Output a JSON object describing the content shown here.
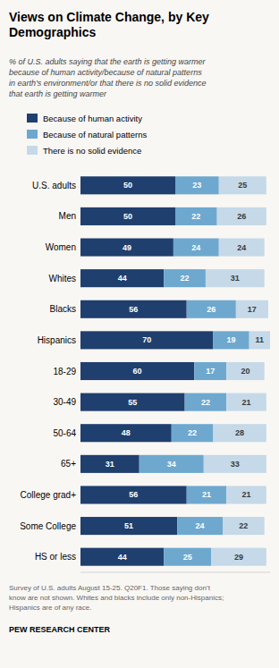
{
  "chart_data": {
    "type": "bar",
    "orientation": "horizontal",
    "stacked": true,
    "title": "Views on Climate Change, by Key\nDemographics",
    "subtitle": "% of U.S. adults saying that the earth is getting warmer\nbecause of human activity/because of natural patterns\nin earth’s environment/or that there is no solid evidence\nthat earth is getting warmer",
    "annotations": [
      "Survey of U.S. adults August 15-25. Q20F1. Those saying don’t\nknow are not shown. Whites and blacks include only non-Hispanics;\nHispanics are of any race.",
      "PEW RESEARCH CENTER"
    ],
    "categories": [
      "U.S. adults",
      "Men",
      "Women",
      "Whites",
      "Blacks",
      "Hispanics",
      "18-29",
      "30-49",
      "50-64",
      "65+",
      "College grad+",
      "Some College",
      "HS or less"
    ],
    "series": [
      {
        "name": "Because of human activity",
        "color": "#1f3f6e",
        "values": [
          50,
          50,
          49,
          44,
          56,
          70,
          60,
          55,
          48,
          31,
          56,
          51,
          44
        ]
      },
      {
        "name": "Because of natural patterns",
        "color": "#6ea8cf",
        "values": [
          23,
          22,
          24,
          22,
          26,
          19,
          17,
          22,
          22,
          34,
          21,
          24,
          25
        ]
      },
      {
        "name": "There is no solid evidence",
        "color": "#c5d9e8",
        "values": [
          25,
          26,
          24,
          31,
          17,
          11,
          20,
          21,
          28,
          33,
          21,
          22,
          29
        ]
      }
    ],
    "xlim": [
      0,
      100
    ],
    "data_labels": true,
    "tick_labels": "y",
    "legend": "top"
  }
}
